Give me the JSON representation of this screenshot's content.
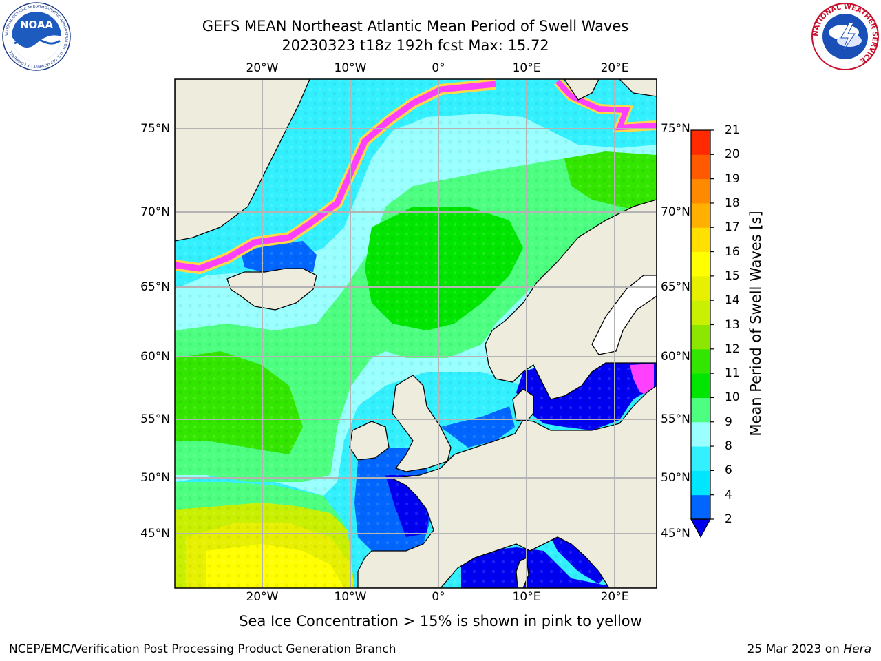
{
  "header": {
    "title_line1": "GEFS MEAN Northeast Atlantic Mean Period of Swell Waves",
    "title_line2": "20230323 t18z 192h fcst   Max: 15.72"
  },
  "logos": {
    "left": {
      "text": "NOAA",
      "ring_text": "NATIONAL OCEANIC AND ATMOSPHERIC ADMINISTRATION · U.S. DEPARTMENT OF COMMERCE"
    },
    "right": {
      "ring_text": "NATIONAL WEATHER SERVICE"
    }
  },
  "map": {
    "lon_labels": [
      "20°W",
      "10°W",
      "0°",
      "10°E",
      "20°E"
    ],
    "lat_labels": [
      "75°N",
      "70°N",
      "65°N",
      "60°N",
      "55°N",
      "50°N",
      "45°N"
    ],
    "colors": {
      "land": "#eeecdc",
      "ice_pink": "#ff40ff",
      "ice_yellow": "#ffd84a",
      "grid": "#b4b4b4"
    }
  },
  "colorbar": {
    "label": "Mean Period of Swell Waves [s]",
    "ticks": [
      "2",
      "4",
      "6",
      "8",
      "9",
      "10",
      "11",
      "12",
      "13",
      "14",
      "15",
      "16",
      "17",
      "18",
      "19",
      "20",
      "21"
    ],
    "colors": [
      "#0066ff",
      "#00e6ff",
      "#33f0ff",
      "#99ffff",
      "#4dff80",
      "#00e600",
      "#33e600",
      "#8ce600",
      "#c8f000",
      "#e6f000",
      "#ffff00",
      "#ffe000",
      "#ffb000",
      "#ff8a00",
      "#ff5a00",
      "#ff2a00"
    ],
    "under_color": "#0000f0"
  },
  "subtitle": "Sea Ice Concentration > 15% is shown in pink to yellow",
  "footer": {
    "left": "NCEP/EMC/Verification Post Processing Product Generation Branch",
    "right_date": "25 Mar 2023 on ",
    "right_host": "Hera"
  }
}
